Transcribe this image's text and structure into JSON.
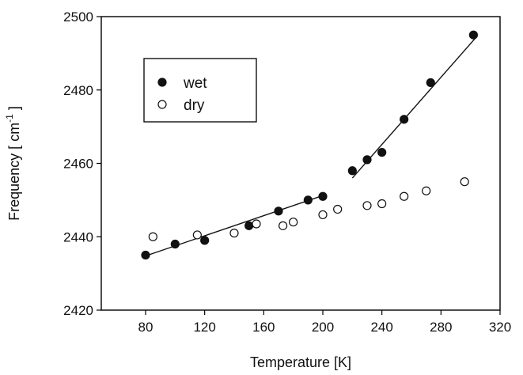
{
  "chart_data": {
    "type": "scatter",
    "title": "",
    "xlabel": "Temperature [K]",
    "ylabel_main": "Frequency [ cm",
    "ylabel_sup": "-1",
    "ylabel_end": " ]",
    "xlim": [
      50,
      320
    ],
    "ylim": [
      2420,
      2500
    ],
    "xticks": [
      80,
      120,
      160,
      200,
      240,
      280,
      320
    ],
    "yticks": [
      2420,
      2440,
      2460,
      2480,
      2500
    ],
    "legend_position": "top-left",
    "series": [
      {
        "name": "wet",
        "marker": "filled-circle",
        "points": [
          [
            80,
            2435
          ],
          [
            100,
            2438
          ],
          [
            120,
            2439
          ],
          [
            150,
            2443
          ],
          [
            170,
            2447
          ],
          [
            190,
            2450
          ],
          [
            200,
            2451
          ],
          [
            220,
            2458
          ],
          [
            230,
            2461
          ],
          [
            240,
            2463
          ],
          [
            255,
            2472
          ],
          [
            273,
            2482
          ],
          [
            302,
            2495
          ]
        ]
      },
      {
        "name": "dry",
        "marker": "open-circle",
        "points": [
          [
            85,
            2440
          ],
          [
            115,
            2440.5
          ],
          [
            140,
            2441
          ],
          [
            155,
            2443.5
          ],
          [
            173,
            2443
          ],
          [
            180,
            2444
          ],
          [
            200,
            2446
          ],
          [
            210,
            2447.5
          ],
          [
            230,
            2448.5
          ],
          [
            240,
            2449
          ],
          [
            255,
            2451
          ],
          [
            270,
            2452.5
          ],
          [
            296,
            2455
          ]
        ]
      }
    ],
    "fit_lines": [
      {
        "from": [
          78,
          2434.5
        ],
        "to": [
          202,
          2451.5
        ]
      },
      {
        "from": [
          220,
          2456
        ],
        "to": [
          303,
          2494
        ]
      }
    ]
  }
}
